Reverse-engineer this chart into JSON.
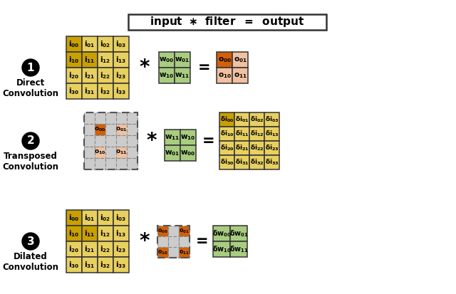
{
  "colors": {
    "gold_dark": "#c8a000",
    "gold_light": "#e8d060",
    "green": "#a8cc80",
    "orange_dark": "#d2600a",
    "orange_light": "#f0c0a0",
    "gray": "#c0c0c0",
    "white": "#ffffff"
  },
  "sections": [
    {
      "num": "1",
      "label": "Direct\nConvolution",
      "input_colors": [
        [
          "#c8a000",
          "#e8d060",
          "#e8d060",
          "#e8d060"
        ],
        [
          "#c8a000",
          "#c8a000",
          "#e8d060",
          "#e8d060"
        ],
        [
          "#e8d060",
          "#e8d060",
          "#e8d060",
          "#e8d060"
        ],
        [
          "#e8d060",
          "#e8d060",
          "#e8d060",
          "#e8d060"
        ]
      ],
      "input_labels": [
        [
          "i",
          "00",
          "i",
          "01",
          "i",
          "02",
          "i",
          "03"
        ],
        [
          "i",
          "10",
          "i",
          "11",
          "i",
          "12",
          "i",
          "13"
        ],
        [
          "i",
          "20",
          "i",
          "21",
          "i",
          "22",
          "i",
          "23"
        ],
        [
          "i",
          "30",
          "i",
          "31",
          "i",
          "32",
          "i",
          "33"
        ]
      ],
      "filter_colors": [
        [
          "#a8cc80",
          "#a8cc80"
        ],
        [
          "#a8cc80",
          "#a8cc80"
        ]
      ],
      "filter_labels_base": [
        "w",
        "w",
        "w",
        "w"
      ],
      "filter_labels_sub": [
        "00",
        "01",
        "10",
        "11"
      ],
      "output_colors": [
        [
          "#d2600a",
          "#f0c0a0"
        ],
        [
          "#f0c0a0",
          "#f0c0a0"
        ]
      ],
      "output_labels_base": [
        "o",
        "o",
        "o",
        "o"
      ],
      "output_labels_sub": [
        "00",
        "01",
        "10",
        "11"
      ]
    },
    {
      "num": "2",
      "label": "Transposed\nConvolution",
      "filter_colors": [
        [
          "#a8cc80",
          "#a8cc80"
        ],
        [
          "#a8cc80",
          "#a8cc80"
        ]
      ],
      "filter_labels_base": [
        "w",
        "w",
        "w",
        "w"
      ],
      "filter_labels_sub": [
        "11",
        "10",
        "01",
        "00"
      ],
      "output_colors": [
        [
          "#c8a000",
          "#e8d060",
          "#e8d060",
          "#e8d060"
        ],
        [
          "#e8d060",
          "#e8d060",
          "#e8d060",
          "#e8d060"
        ],
        [
          "#e8d060",
          "#e8d060",
          "#e8d060",
          "#e8d060"
        ],
        [
          "#e8d060",
          "#e8d060",
          "#e8d060",
          "#e8d060"
        ]
      ],
      "output_is_delta_i": true,
      "output_labels_sub": [
        "00",
        "01",
        "02",
        "03",
        "10",
        "11",
        "12",
        "13",
        "20",
        "21",
        "22",
        "23",
        "30",
        "31",
        "32",
        "33"
      ]
    },
    {
      "num": "3",
      "label": "Dilated\nConvolution",
      "input_colors": [
        [
          "#c8a000",
          "#e8d060",
          "#e8d060",
          "#e8d060"
        ],
        [
          "#c8a000",
          "#c8a000",
          "#e8d060",
          "#e8d060"
        ],
        [
          "#e8d060",
          "#e8d060",
          "#e8d060",
          "#e8d060"
        ],
        [
          "#e8d060",
          "#e8d060",
          "#e8d060",
          "#e8d060"
        ]
      ],
      "input_labels_sub": [
        "00",
        "01",
        "02",
        "03",
        "10",
        "11",
        "12",
        "13",
        "20",
        "21",
        "22",
        "23",
        "30",
        "31",
        "32",
        "33"
      ],
      "filter_colors": [
        [
          "#d2600a",
          "#d2600a"
        ],
        [
          "#d2600a",
          "#d2600a"
        ]
      ],
      "filter_labels_base": [
        "o",
        "o",
        "o",
        "o"
      ],
      "filter_labels_sub": [
        "00",
        "01",
        "10",
        "11"
      ],
      "output_colors": [
        [
          "#a8cc80",
          "#a8cc80"
        ],
        [
          "#a8cc80",
          "#a8cc80"
        ]
      ],
      "output_is_delta_w": true,
      "output_labels_sub": [
        "00",
        "01",
        "10",
        "11"
      ]
    }
  ]
}
